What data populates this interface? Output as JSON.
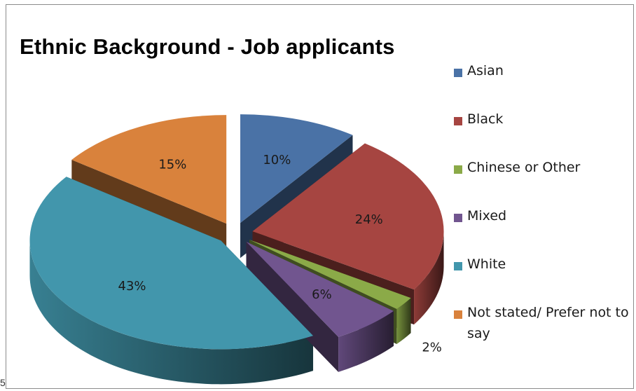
{
  "corner_text": "5",
  "chart_data": {
    "type": "pie",
    "title": "Ethnic Background - Job applicants",
    "categories": [
      "Asian",
      "Black",
      "Chinese or Other",
      "Mixed",
      "White",
      "Not stated/ Prefer not to say"
    ],
    "values": [
      10,
      24,
      2,
      6,
      43,
      15
    ],
    "data_labels": [
      "10%",
      "24%",
      "2%",
      "6%",
      "43%",
      "15%"
    ],
    "colors": [
      "#4A72A6",
      "#A64541",
      "#8BAA48",
      "#71558F",
      "#4296AC",
      "#D9823C"
    ],
    "three_d": true,
    "exploded": true,
    "legend_position": "right"
  }
}
